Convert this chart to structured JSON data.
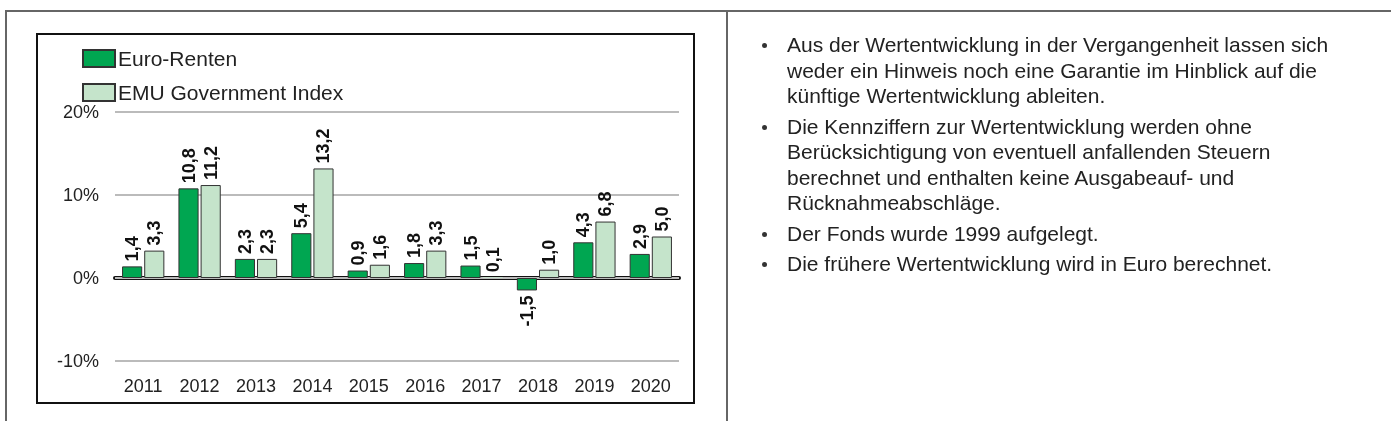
{
  "chart_data": {
    "type": "bar",
    "categories": [
      "2011",
      "2012",
      "2013",
      "2014",
      "2015",
      "2016",
      "2017",
      "2018",
      "2019",
      "2020"
    ],
    "series": [
      {
        "name": "Euro-Renten",
        "color": "#00a651",
        "values": [
          1.4,
          10.8,
          2.3,
          5.4,
          0.9,
          1.8,
          1.5,
          -1.5,
          4.3,
          2.9
        ],
        "value_labels": [
          "1,4",
          "10,8",
          "2,3",
          "5,4",
          "0,9",
          "1,8",
          "1,5",
          "-1,5",
          "4,3",
          "2,9"
        ]
      },
      {
        "name": "EMU Government Index",
        "color": "#c5e4cb",
        "values": [
          3.3,
          11.2,
          2.3,
          13.2,
          1.6,
          3.3,
          0.1,
          1.0,
          6.8,
          5.0
        ],
        "value_labels": [
          "3,3",
          "11,2",
          "2,3",
          "13,2",
          "1,6",
          "3,3",
          "0,1",
          "1,0",
          "6,8",
          "5,0"
        ]
      }
    ],
    "ylim": [
      -10,
      20
    ],
    "yticks": [
      {
        "value": -10,
        "label": "-10%"
      },
      {
        "value": 0,
        "label": "0%"
      },
      {
        "value": 10,
        "label": "10%"
      },
      {
        "value": 20,
        "label": "20%"
      }
    ],
    "grid": "y",
    "legend": "top left",
    "annotations": [
      "Aus der Wertentwicklung in der Vergangenheit lassen sich weder ein Hinweis noch eine Garantie im Hinblick auf die künftige Wertentwicklung ableiten.",
      "Die Kennziffern zur Wertentwicklung werden ohne Berücksichtigung von eventuell anfallenden Steuern berechnet und enthalten keine Ausgabeauf- und Rücknahmeabschläge.",
      "Der Fonds wurde 1999 aufgelegt.",
      "Die frühere Wertentwicklung wird in Euro berechnet."
    ]
  }
}
